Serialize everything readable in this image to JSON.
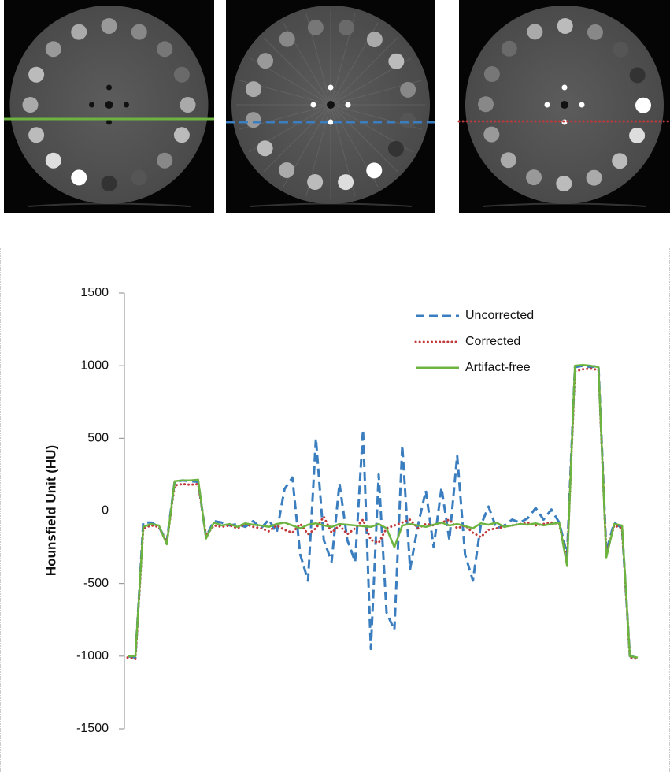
{
  "chart_data": {
    "type": "line",
    "ylabel": "Hounsfield Unit (HU)",
    "ylim": [
      -1500,
      1500
    ],
    "yticks": [
      -1500,
      -1000,
      -500,
      0,
      500,
      1000,
      1500
    ],
    "legend": "upper right",
    "series": [
      {
        "name": "Uncorrected",
        "color": "#3a7ebf",
        "line_style": "dashed",
        "values": [
          -1000,
          -1010,
          -80,
          -80,
          -110,
          -210,
          200,
          210,
          205,
          200,
          -180,
          -70,
          -80,
          -100,
          -90,
          -110,
          -70,
          -120,
          -60,
          -150,
          150,
          230,
          -300,
          -480,
          500,
          -200,
          -350,
          190,
          -200,
          -350,
          560,
          -950,
          250,
          -700,
          -820,
          450,
          -400,
          -100,
          140,
          -250,
          160,
          -200,
          380,
          -300,
          -480,
          -100,
          30,
          -120,
          -100,
          -60,
          -80,
          -50,
          20,
          -60,
          10,
          -80,
          -300,
          990,
          1000,
          990,
          1000,
          -280,
          -80,
          -120,
          -1000,
          -1010
        ]
      },
      {
        "name": "Corrected",
        "color": "#c0393b",
        "line_style": "dotted",
        "values": [
          -1010,
          -1020,
          -120,
          -100,
          -110,
          -220,
          175,
          185,
          180,
          185,
          -170,
          -100,
          -110,
          -100,
          -120,
          -90,
          -110,
          -120,
          -140,
          -100,
          -130,
          -150,
          -90,
          -160,
          -120,
          -40,
          -150,
          -100,
          -160,
          -120,
          -60,
          -200,
          -220,
          -120,
          -100,
          -80,
          -60,
          -120,
          -90,
          -100,
          -80,
          -60,
          -120,
          -100,
          -150,
          -180,
          -130,
          -120,
          -110,
          -100,
          -90,
          -80,
          -100,
          -90,
          -80,
          -90,
          -350,
          960,
          975,
          980,
          970,
          -300,
          -100,
          -120,
          -1010,
          -1020
        ]
      },
      {
        "name": "Artifact-free",
        "color": "#6cb43f",
        "line_style": "solid",
        "values": [
          -1000,
          -1000,
          -110,
          -90,
          -100,
          -230,
          205,
          210,
          210,
          215,
          -190,
          -80,
          -100,
          -90,
          -110,
          -85,
          -95,
          -100,
          -110,
          -90,
          -80,
          -100,
          -120,
          -95,
          -85,
          -100,
          -110,
          -90,
          -95,
          -100,
          -105,
          -110,
          -90,
          -120,
          -250,
          -100,
          -90,
          -100,
          -110,
          -95,
          -80,
          -100,
          -90,
          -105,
          -120,
          -85,
          -95,
          -80,
          -110,
          -100,
          -90,
          -95,
          -85,
          -100,
          -90,
          -80,
          -380,
          1000,
          1005,
          1000,
          990,
          -320,
          -90,
          -100,
          -1000,
          -1010
        ]
      }
    ]
  }
}
